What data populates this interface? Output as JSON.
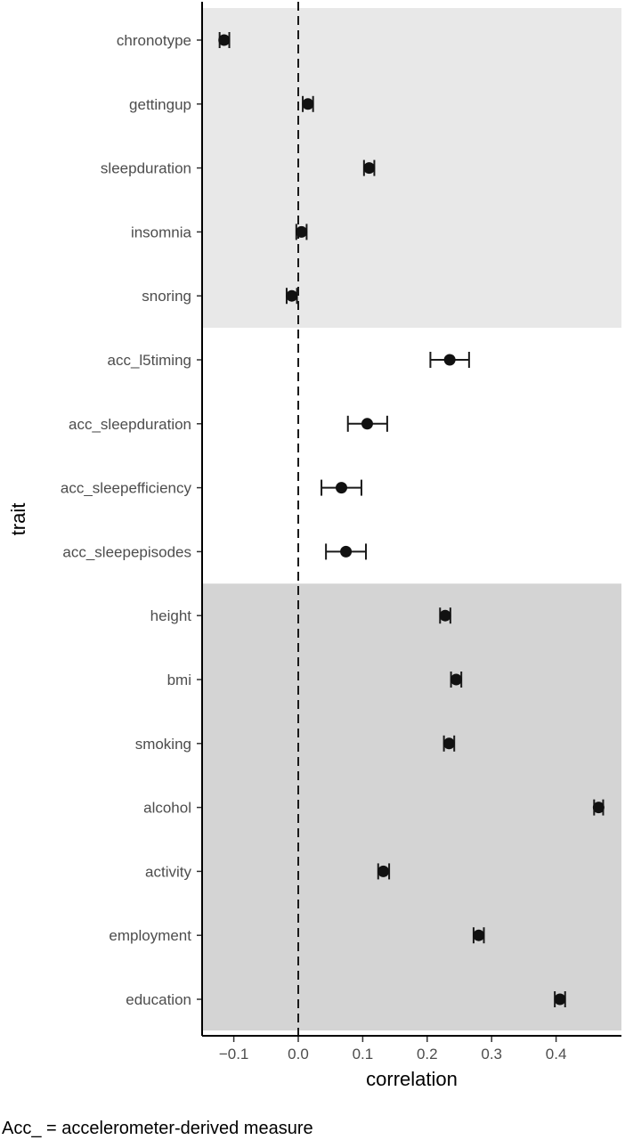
{
  "chart_data": {
    "type": "scatter",
    "subtype": "forest-plot",
    "xlabel": "correlation",
    "ylabel": "trait",
    "xlim": [
      -0.15,
      0.5
    ],
    "x_ticks": [
      -0.1,
      0.0,
      0.1,
      0.2,
      0.3,
      0.4
    ],
    "x_tick_labels": [
      "−0.1",
      "0.0",
      "0.1",
      "0.2",
      "0.3",
      "0.4"
    ],
    "reference_line": {
      "x": 0,
      "style": "dashed"
    },
    "grid": false,
    "traits": [
      {
        "name": "chronotype",
        "value": -0.115,
        "lower": -0.122,
        "upper": -0.107,
        "group": 0
      },
      {
        "name": "gettingup",
        "value": 0.015,
        "lower": 0.007,
        "upper": 0.023,
        "group": 0
      },
      {
        "name": "sleepduration",
        "value": 0.11,
        "lower": 0.102,
        "upper": 0.118,
        "group": 0
      },
      {
        "name": "insomnia",
        "value": 0.005,
        "lower": -0.003,
        "upper": 0.013,
        "group": 0
      },
      {
        "name": "snoring",
        "value": -0.01,
        "lower": -0.018,
        "upper": -0.002,
        "group": 0
      },
      {
        "name": "acc_l5timing",
        "value": 0.235,
        "lower": 0.205,
        "upper": 0.265,
        "group": 1
      },
      {
        "name": "acc_sleepduration",
        "value": 0.107,
        "lower": 0.077,
        "upper": 0.138,
        "group": 1
      },
      {
        "name": "acc_sleepefficiency",
        "value": 0.067,
        "lower": 0.036,
        "upper": 0.098,
        "group": 1
      },
      {
        "name": "acc_sleepepisodes",
        "value": 0.074,
        "lower": 0.043,
        "upper": 0.105,
        "group": 1
      },
      {
        "name": "height",
        "value": 0.228,
        "lower": 0.22,
        "upper": 0.236,
        "group": 2
      },
      {
        "name": "bmi",
        "value": 0.245,
        "lower": 0.237,
        "upper": 0.253,
        "group": 2
      },
      {
        "name": "smoking",
        "value": 0.234,
        "lower": 0.226,
        "upper": 0.242,
        "group": 2
      },
      {
        "name": "alcohol",
        "value": 0.466,
        "lower": 0.459,
        "upper": 0.473,
        "group": 2
      },
      {
        "name": "activity",
        "value": 0.132,
        "lower": 0.124,
        "upper": 0.141,
        "group": 2
      },
      {
        "name": "employment",
        "value": 0.28,
        "lower": 0.272,
        "upper": 0.288,
        "group": 2
      },
      {
        "name": "education",
        "value": 0.406,
        "lower": 0.398,
        "upper": 0.414,
        "group": 2
      }
    ],
    "groups": [
      {
        "color": "#e8e8e8"
      },
      {
        "color": "#ffffff"
      },
      {
        "color": "#d4d4d4"
      }
    ],
    "footnote": "Acc_ = accelerometer-derived measure"
  }
}
